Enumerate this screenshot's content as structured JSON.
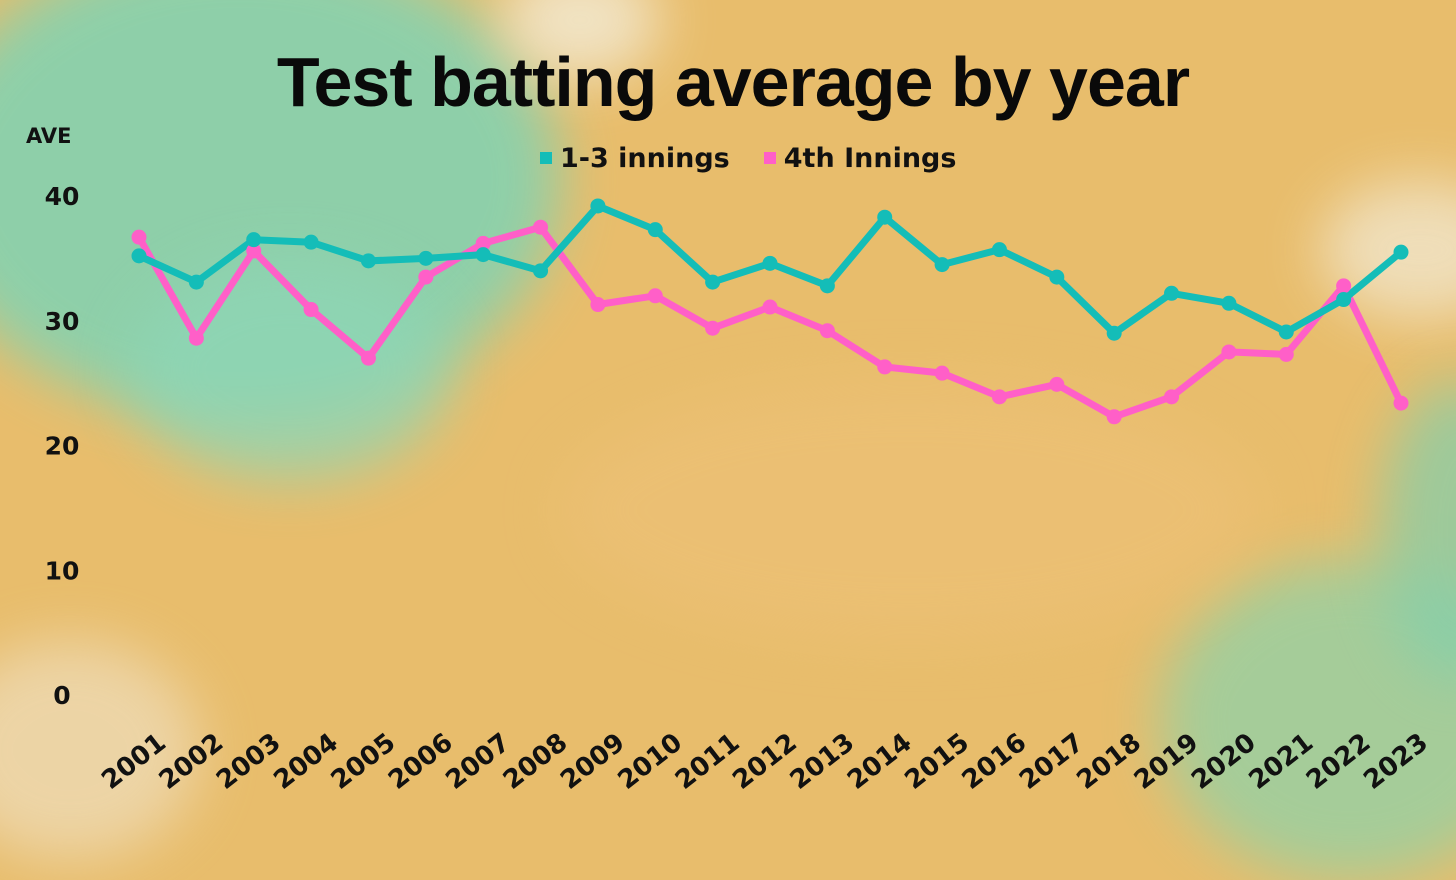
{
  "colors": {
    "series_1": "#14bdb8",
    "series_2": "#ff5fc8",
    "background": "#e8bd6c"
  },
  "chart_data": {
    "type": "line",
    "title": "Test batting average by year",
    "ylabel": "AVE",
    "xlabel": "",
    "ylim": [
      0,
      40
    ],
    "yticks": [
      0,
      10,
      20,
      30,
      40
    ],
    "grid": false,
    "legend_position": "top-center",
    "x": [
      "2001",
      "2002",
      "2003",
      "2004",
      "2005",
      "2006",
      "2007",
      "2008",
      "2009",
      "2010",
      "2011",
      "2012",
      "2013",
      "2014",
      "2015",
      "2016",
      "2017",
      "2018",
      "2019",
      "2020",
      "2021",
      "2022",
      "2023"
    ],
    "series": [
      {
        "name": "1-3 innings",
        "color": "#14bdb8",
        "values": [
          35.2,
          33.1,
          36.5,
          36.3,
          34.8,
          35.0,
          35.3,
          34.0,
          39.2,
          37.3,
          33.1,
          34.6,
          32.8,
          38.3,
          34.5,
          35.7,
          33.5,
          29.0,
          32.2,
          31.4,
          29.1,
          31.7,
          35.5
        ]
      },
      {
        "name": "4th Innings",
        "color": "#ff5fc8",
        "values": [
          36.7,
          28.6,
          35.6,
          30.9,
          27.0,
          33.5,
          36.2,
          37.5,
          31.3,
          32.0,
          29.4,
          31.1,
          29.2,
          26.3,
          25.8,
          23.9,
          24.9,
          22.3,
          23.9,
          27.5,
          27.3,
          32.8,
          23.4
        ]
      }
    ]
  }
}
